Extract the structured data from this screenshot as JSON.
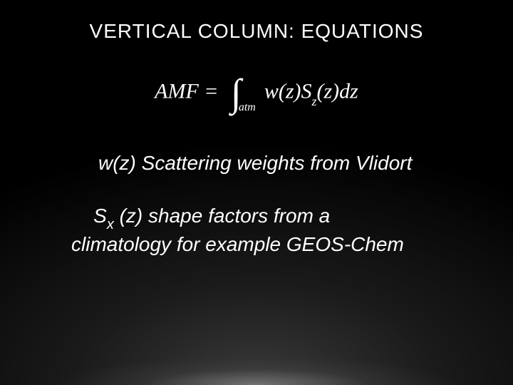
{
  "slide": {
    "title": "VERTICAL COLUMN: EQUATIONS",
    "title_fontsize": 28,
    "title_color": "#ffffff",
    "equation": {
      "lhs": "AMF",
      "eq": " = ",
      "int_symbol": "∫",
      "int_lower": "atm",
      "integrand_w": "w(z)",
      "integrand_S": "S",
      "integrand_S_sub": "z",
      "integrand_arg": "(z)",
      "integrand_dz": "dz",
      "fontsize": 30,
      "color": "#ffffff"
    },
    "desc1": {
      "prefix_var": "w(z)",
      "text": " Scattering weights from Vlidort",
      "fontsize": 28,
      "color": "#ffffff"
    },
    "desc2": {
      "var_S": "S",
      "var_S_sub": "x",
      "var_arg": " (z)",
      "text_line1_rest": " shape factors from a",
      "text_line2": "climatology for example GEOS-Chem",
      "fontsize": 28,
      "color": "#ffffff"
    },
    "background": {
      "base_color": "#000000",
      "gradient_inner": "#3a3a3a",
      "gradient_outer": "#000000",
      "floor_highlight": "#a0a0a0"
    }
  }
}
